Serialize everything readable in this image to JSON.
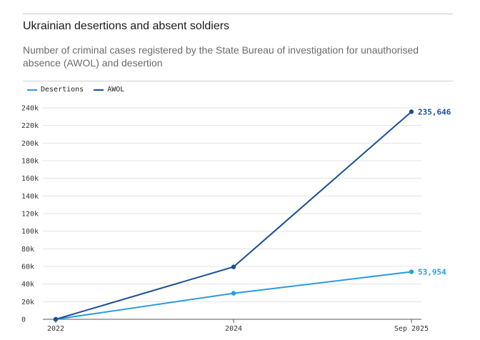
{
  "header": {
    "title": "Ukrainian desertions and absent soldiers",
    "subtitle": "Number of criminal cases registered by the State Bureau of investigation for unauthorised absence (AWOL) and desertion"
  },
  "chart_data": {
    "type": "line",
    "x": [
      "2022",
      "2024",
      "Sep 2025"
    ],
    "series": [
      {
        "name": "Desertions",
        "color": "#2a9be0",
        "values": [
          0,
          29500,
          53954
        ],
        "end_label": "53,954"
      },
      {
        "name": "AWOL",
        "color": "#1a4f96",
        "values": [
          0,
          59500,
          235646
        ],
        "end_label": "235,646"
      }
    ],
    "y_ticks": [
      0,
      20000,
      40000,
      60000,
      80000,
      100000,
      120000,
      140000,
      160000,
      180000,
      200000,
      220000,
      240000
    ],
    "y_tick_labels": [
      "0",
      "20k",
      "40k",
      "60k",
      "80k",
      "100k",
      "120k",
      "140k",
      "160k",
      "180k",
      "200k",
      "220k",
      "240k"
    ],
    "ylim": [
      0,
      240000
    ],
    "grid": true,
    "legend": "top-left"
  }
}
